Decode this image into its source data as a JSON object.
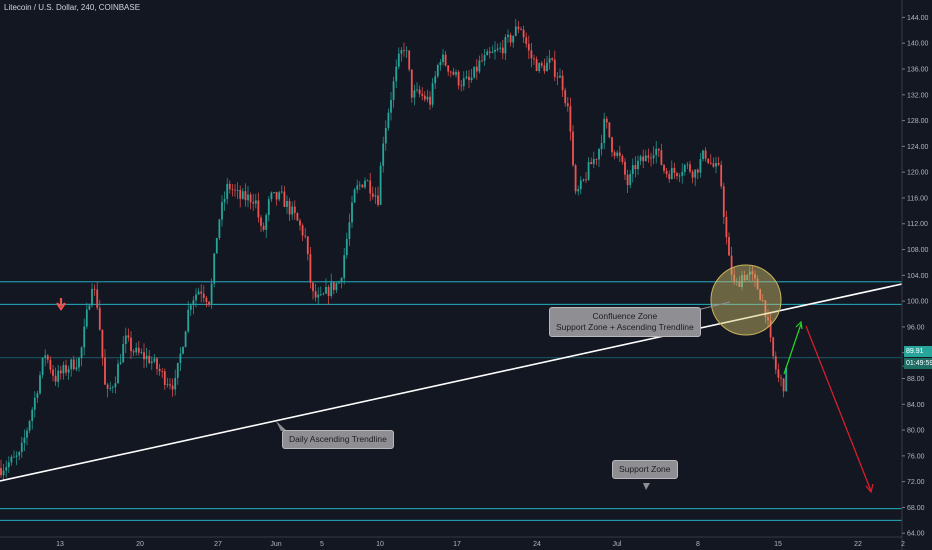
{
  "header": {
    "title": "Litecoin / U.S. Dollar, 240, COINBASE"
  },
  "colors": {
    "background": "#131722",
    "bull": "#26a69a",
    "bear": "#ef5350",
    "zone_line": "#26c6da",
    "trendline": "#ffffff",
    "green_arrow": "#26d925",
    "red_arrow": "#e01e2c",
    "circle_fill": "#d6c36a",
    "grid_text": "#b2b5be"
  },
  "chart_data": {
    "type": "candlestick",
    "y_axis": {
      "ticks": [
        144,
        140,
        136,
        132,
        128,
        124,
        120,
        116,
        112,
        108,
        104,
        100,
        96,
        92,
        88,
        84,
        80,
        76,
        72,
        68,
        64
      ],
      "tick_labels": [
        "144.00",
        "140.00",
        "136.00",
        "132.00",
        "128.00",
        "124.00",
        "120.00",
        "116.00",
        "112.00",
        "108.00",
        "104.00",
        "100.00",
        "96.00",
        "92.00",
        "88.00",
        "84.00",
        "80.00",
        "76.00",
        "72.00",
        "68.00",
        "64.00"
      ],
      "range": [
        61.4,
        146.7
      ]
    },
    "x_axis": {
      "tick_labels": [
        "13",
        "20",
        "27",
        "Jun",
        "5",
        "10",
        "17",
        "24",
        "Jul",
        "8",
        "15",
        "22",
        "2"
      ]
    },
    "price_label": "89.91",
    "countdown_label": "01:49:59",
    "current_price": 89.91,
    "resistance_zone": [
      99.5,
      103.0
    ],
    "level_line": 91.2,
    "support_zone": [
      66.0,
      67.8
    ],
    "trendline_label": "Daily Ascending Trendline",
    "confluence_label": [
      "Confluence Zone",
      "Support Zone + Ascending Trendline"
    ],
    "support_label": "Support Zone",
    "path": [
      [
        0,
        74
      ],
      [
        20,
        76
      ],
      [
        35,
        85
      ],
      [
        45,
        92
      ],
      [
        55,
        88
      ],
      [
        70,
        90
      ],
      [
        80,
        91
      ],
      [
        92,
        103
      ],
      [
        98,
        99
      ],
      [
        106,
        85
      ],
      [
        115,
        88
      ],
      [
        125,
        94
      ],
      [
        135,
        92
      ],
      [
        150,
        91
      ],
      [
        165,
        88
      ],
      [
        175,
        87
      ],
      [
        182,
        93
      ],
      [
        190,
        100
      ],
      [
        200,
        102
      ],
      [
        210,
        100
      ],
      [
        218,
        112
      ],
      [
        228,
        118
      ],
      [
        240,
        116
      ],
      [
        255,
        116
      ],
      [
        262,
        110
      ],
      [
        270,
        116
      ],
      [
        282,
        116
      ],
      [
        295,
        113
      ],
      [
        305,
        110
      ],
      [
        312,
        101
      ],
      [
        320,
        100
      ],
      [
        330,
        102
      ],
      [
        340,
        103
      ],
      [
        345,
        108
      ],
      [
        355,
        117
      ],
      [
        365,
        119
      ],
      [
        378,
        116
      ],
      [
        383,
        125
      ],
      [
        390,
        131
      ],
      [
        398,
        137
      ],
      [
        405,
        140
      ],
      [
        412,
        132
      ],
      [
        420,
        132
      ],
      [
        430,
        131
      ],
      [
        440,
        138
      ],
      [
        450,
        136
      ],
      [
        460,
        134
      ],
      [
        470,
        134
      ],
      [
        480,
        137
      ],
      [
        490,
        138
      ],
      [
        500,
        139
      ],
      [
        512,
        141
      ],
      [
        520,
        143
      ],
      [
        530,
        138
      ],
      [
        540,
        136
      ],
      [
        550,
        137
      ],
      [
        562,
        134
      ],
      [
        570,
        128
      ],
      [
        575,
        116
      ],
      [
        582,
        118
      ],
      [
        590,
        121
      ],
      [
        598,
        123
      ],
      [
        605,
        128
      ],
      [
        612,
        124
      ],
      [
        620,
        122
      ],
      [
        628,
        118
      ],
      [
        635,
        121
      ],
      [
        645,
        122
      ],
      [
        655,
        124
      ],
      [
        665,
        120
      ],
      [
        675,
        120
      ],
      [
        685,
        121
      ],
      [
        695,
        120
      ],
      [
        705,
        123
      ],
      [
        712,
        121
      ],
      [
        720,
        120
      ],
      [
        728,
        107
      ],
      [
        735,
        102
      ],
      [
        742,
        104
      ],
      [
        750,
        104
      ],
      [
        758,
        102
      ],
      [
        765,
        99
      ],
      [
        772,
        92
      ],
      [
        778,
        88
      ],
      [
        784,
        87
      ],
      [
        788,
        89.9
      ]
    ]
  }
}
